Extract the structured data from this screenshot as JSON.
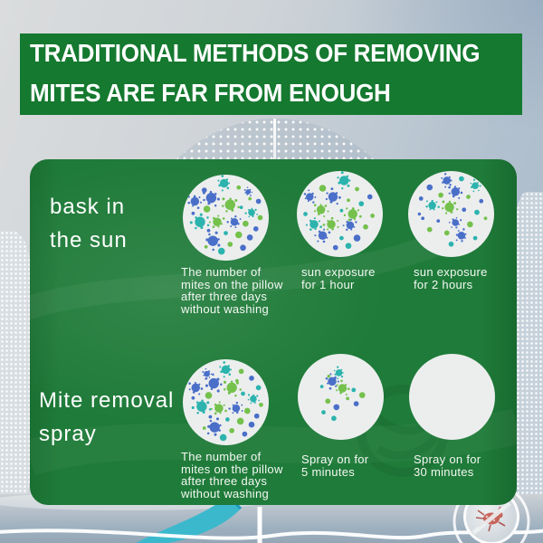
{
  "header": {
    "lines": [
      "TRADITIONAL METHODS OF REMOVING",
      "MITES ARE FAR FROM ENOUGH"
    ]
  },
  "sections": [
    {
      "label": [
        "bask in",
        "the sun"
      ],
      "items": [
        {
          "caption": [
            "The number of",
            "mites on the pillow",
            "after three days",
            "without washing"
          ]
        },
        {
          "caption": [
            "sun exposure",
            "for 1 hour"
          ]
        },
        {
          "caption": [
            "sun exposure",
            "for 2 hours"
          ]
        }
      ]
    },
    {
      "label": [
        "Mite removal",
        "spray"
      ],
      "items": [
        {
          "caption": [
            "The number of",
            "mites on the pillow",
            "after three days",
            "without washing"
          ]
        },
        {
          "caption": [
            "Spray on for",
            "5 minutes"
          ]
        },
        {
          "caption": [
            "Spray on for",
            "30 minutes"
          ]
        }
      ]
    }
  ],
  "colors": {
    "header_green": "#15792f",
    "panel_green": "#1f7b39",
    "circle_bg": "#eceeee",
    "mite_palette": [
      "#4a6fc9",
      "#2cb3ae",
      "#74c14c"
    ],
    "ribbon_teal": "#3cb8cd",
    "badge_mite_red": "#c0453a"
  },
  "mite_circles": [
    [
      [
        48,
        10,
        5,
        1,
        1
      ],
      [
        25,
        18,
        3,
        0,
        0
      ],
      [
        65,
        15,
        2.5,
        2,
        0
      ],
      [
        76,
        20,
        3,
        0,
        1
      ],
      [
        88,
        31,
        3,
        0,
        0
      ],
      [
        78,
        28,
        2,
        2,
        0
      ],
      [
        33,
        27,
        6,
        0,
        1
      ],
      [
        14,
        31,
        5,
        0,
        1
      ],
      [
        28,
        40,
        4,
        2,
        0
      ],
      [
        12,
        45,
        2,
        0,
        0
      ],
      [
        55,
        35,
        6,
        2,
        1
      ],
      [
        68,
        38,
        2,
        1,
        0
      ],
      [
        80,
        44,
        4,
        1,
        1
      ],
      [
        90,
        50,
        3,
        2,
        0
      ],
      [
        20,
        55,
        6,
        1,
        1
      ],
      [
        40,
        55,
        5,
        2,
        1
      ],
      [
        60,
        55,
        4.5,
        0,
        1
      ],
      [
        73,
        57,
        3.5,
        2,
        0
      ],
      [
        85,
        63,
        3,
        0,
        0
      ],
      [
        30,
        65,
        2,
        0,
        0
      ],
      [
        50,
        68,
        2.5,
        1,
        0
      ],
      [
        65,
        70,
        4,
        2,
        0
      ],
      [
        78,
        73,
        3.5,
        0,
        0
      ],
      [
        35,
        77,
        6,
        0,
        1
      ],
      [
        55,
        81,
        3,
        2,
        0
      ],
      [
        70,
        85,
        3.5,
        0,
        0
      ],
      [
        45,
        89,
        4,
        1,
        0
      ],
      [
        27,
        84,
        2,
        2,
        0
      ]
    ],
    [
      [
        55,
        11,
        5.5,
        1,
        1
      ],
      [
        30,
        20,
        4,
        2,
        0
      ],
      [
        70,
        21,
        2.5,
        2,
        0
      ],
      [
        15,
        30,
        4.5,
        0,
        1
      ],
      [
        42,
        30,
        5.5,
        0,
        1
      ],
      [
        85,
        30,
        3,
        0,
        0
      ],
      [
        60,
        34,
        2,
        2,
        0
      ],
      [
        75,
        38,
        3,
        1,
        0
      ],
      [
        28,
        45,
        5,
        2,
        1
      ],
      [
        10,
        50,
        2.5,
        1,
        0
      ],
      [
        52,
        46,
        2,
        1,
        0
      ],
      [
        65,
        50,
        5.5,
        2,
        1
      ],
      [
        88,
        52,
        2.5,
        2,
        0
      ],
      [
        20,
        62,
        5,
        1,
        1
      ],
      [
        40,
        62,
        5,
        2,
        1
      ],
      [
        62,
        63,
        4.5,
        0,
        1
      ],
      [
        80,
        65,
        3,
        2,
        0
      ],
      [
        30,
        75,
        5,
        0,
        1
      ],
      [
        52,
        78,
        2.5,
        1,
        0
      ],
      [
        70,
        78,
        4,
        0,
        0
      ],
      [
        45,
        89,
        3,
        0,
        0
      ],
      [
        60,
        87,
        3.5,
        1,
        0
      ]
    ],
    [
      [
        45,
        11,
        4.5,
        0,
        1
      ],
      [
        62,
        9,
        3,
        1,
        0
      ],
      [
        78,
        17,
        4,
        1,
        1
      ],
      [
        25,
        19,
        3.5,
        0,
        0
      ],
      [
        15,
        32,
        2.5,
        0,
        0
      ],
      [
        38,
        28,
        3,
        2,
        0
      ],
      [
        55,
        24,
        5,
        0,
        1
      ],
      [
        70,
        30,
        2.5,
        2,
        0
      ],
      [
        85,
        35,
        2.5,
        0,
        0
      ],
      [
        28,
        40,
        4.5,
        1,
        1
      ],
      [
        48,
        42,
        5.5,
        2,
        1
      ],
      [
        13,
        50,
        1.8,
        0,
        0
      ],
      [
        17,
        55,
        2,
        0,
        0
      ],
      [
        65,
        45,
        2.5,
        0,
        0
      ],
      [
        80,
        48,
        3,
        1,
        0
      ],
      [
        90,
        55,
        2,
        2,
        0
      ],
      [
        35,
        58,
        2,
        0,
        0
      ],
      [
        55,
        60,
        4,
        0,
        1
      ],
      [
        72,
        62,
        3.5,
        2,
        0
      ],
      [
        25,
        68,
        3,
        2,
        0
      ],
      [
        45,
        72,
        3,
        2,
        0
      ],
      [
        62,
        75,
        4.5,
        0,
        1
      ],
      [
        78,
        78,
        2.5,
        1,
        0
      ],
      [
        50,
        85,
        3,
        1,
        0
      ]
    ],
    [
      [
        50,
        12,
        5,
        1,
        1
      ],
      [
        28,
        17,
        3.5,
        0,
        1
      ],
      [
        68,
        14,
        3,
        2,
        0
      ],
      [
        80,
        22,
        3,
        0,
        0
      ],
      [
        88,
        33,
        3,
        1,
        0
      ],
      [
        36,
        28,
        6,
        0,
        1
      ],
      [
        15,
        33,
        5,
        0,
        1
      ],
      [
        30,
        42,
        4,
        2,
        0
      ],
      [
        57,
        33,
        6,
        2,
        1
      ],
      [
        70,
        40,
        2.5,
        1,
        0
      ],
      [
        82,
        46,
        4,
        1,
        1
      ],
      [
        91,
        53,
        2.5,
        2,
        0
      ],
      [
        22,
        55,
        6,
        1,
        1
      ],
      [
        42,
        57,
        5,
        2,
        1
      ],
      [
        62,
        57,
        4.5,
        0,
        1
      ],
      [
        75,
        60,
        3.5,
        2,
        0
      ],
      [
        86,
        66,
        3,
        0,
        0
      ],
      [
        32,
        67,
        2,
        0,
        0
      ],
      [
        52,
        70,
        2.5,
        1,
        0
      ],
      [
        67,
        72,
        4,
        2,
        0
      ],
      [
        80,
        76,
        3.5,
        0,
        0
      ],
      [
        37,
        79,
        6,
        0,
        1
      ],
      [
        57,
        83,
        3,
        2,
        0
      ],
      [
        72,
        87,
        3,
        0,
        0
      ],
      [
        47,
        91,
        4,
        1,
        0
      ],
      [
        25,
        80,
        2,
        2,
        0
      ],
      [
        12,
        45,
        2,
        0,
        0
      ],
      [
        63,
        25,
        2,
        2,
        0
      ]
    ],
    [
      [
        48,
        22,
        4,
        1,
        1
      ],
      [
        40,
        32,
        5,
        0,
        1
      ],
      [
        36,
        26,
        1.8,
        2,
        0
      ],
      [
        28,
        38,
        2,
        1,
        0
      ],
      [
        52,
        40,
        5,
        2,
        1
      ],
      [
        65,
        42,
        2.5,
        1,
        0
      ],
      [
        75,
        48,
        3.5,
        2,
        0
      ],
      [
        58,
        52,
        2,
        2,
        0
      ],
      [
        68,
        58,
        3,
        0,
        0
      ],
      [
        35,
        55,
        3,
        2,
        0
      ],
      [
        45,
        62,
        3.5,
        0,
        0
      ],
      [
        30,
        68,
        2.5,
        1,
        0
      ],
      [
        42,
        75,
        3,
        1,
        0
      ]
    ],
    []
  ]
}
